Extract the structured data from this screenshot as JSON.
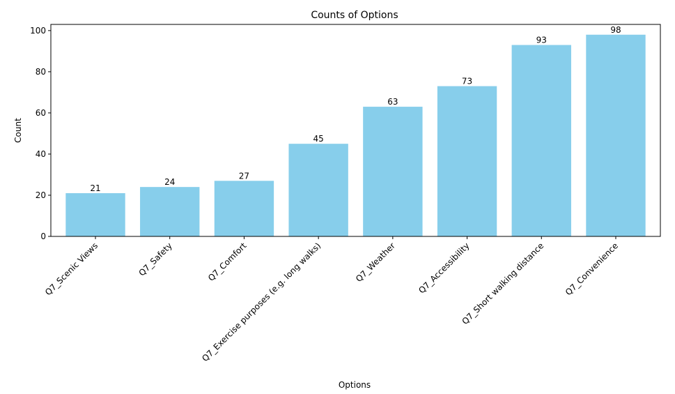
{
  "chart_data": {
    "type": "bar",
    "title": "Counts of Options",
    "xlabel": "Options",
    "ylabel": "Count",
    "categories": [
      "Q7_Scenic Views",
      "Q7_Safety",
      "Q7_Comfort",
      "Q7_Exercise purposes (e.g. long walks)",
      "Q7_Weather",
      "Q7_Accessibility",
      "Q7_Short walking distance",
      "Q7_Convenience"
    ],
    "values": [
      21,
      24,
      27,
      45,
      63,
      73,
      93,
      98
    ],
    "ylim": [
      0,
      103
    ],
    "yticks": [
      0,
      20,
      40,
      60,
      80,
      100
    ],
    "bar_color": "#87CEEB",
    "grid": false,
    "legend": "none"
  }
}
